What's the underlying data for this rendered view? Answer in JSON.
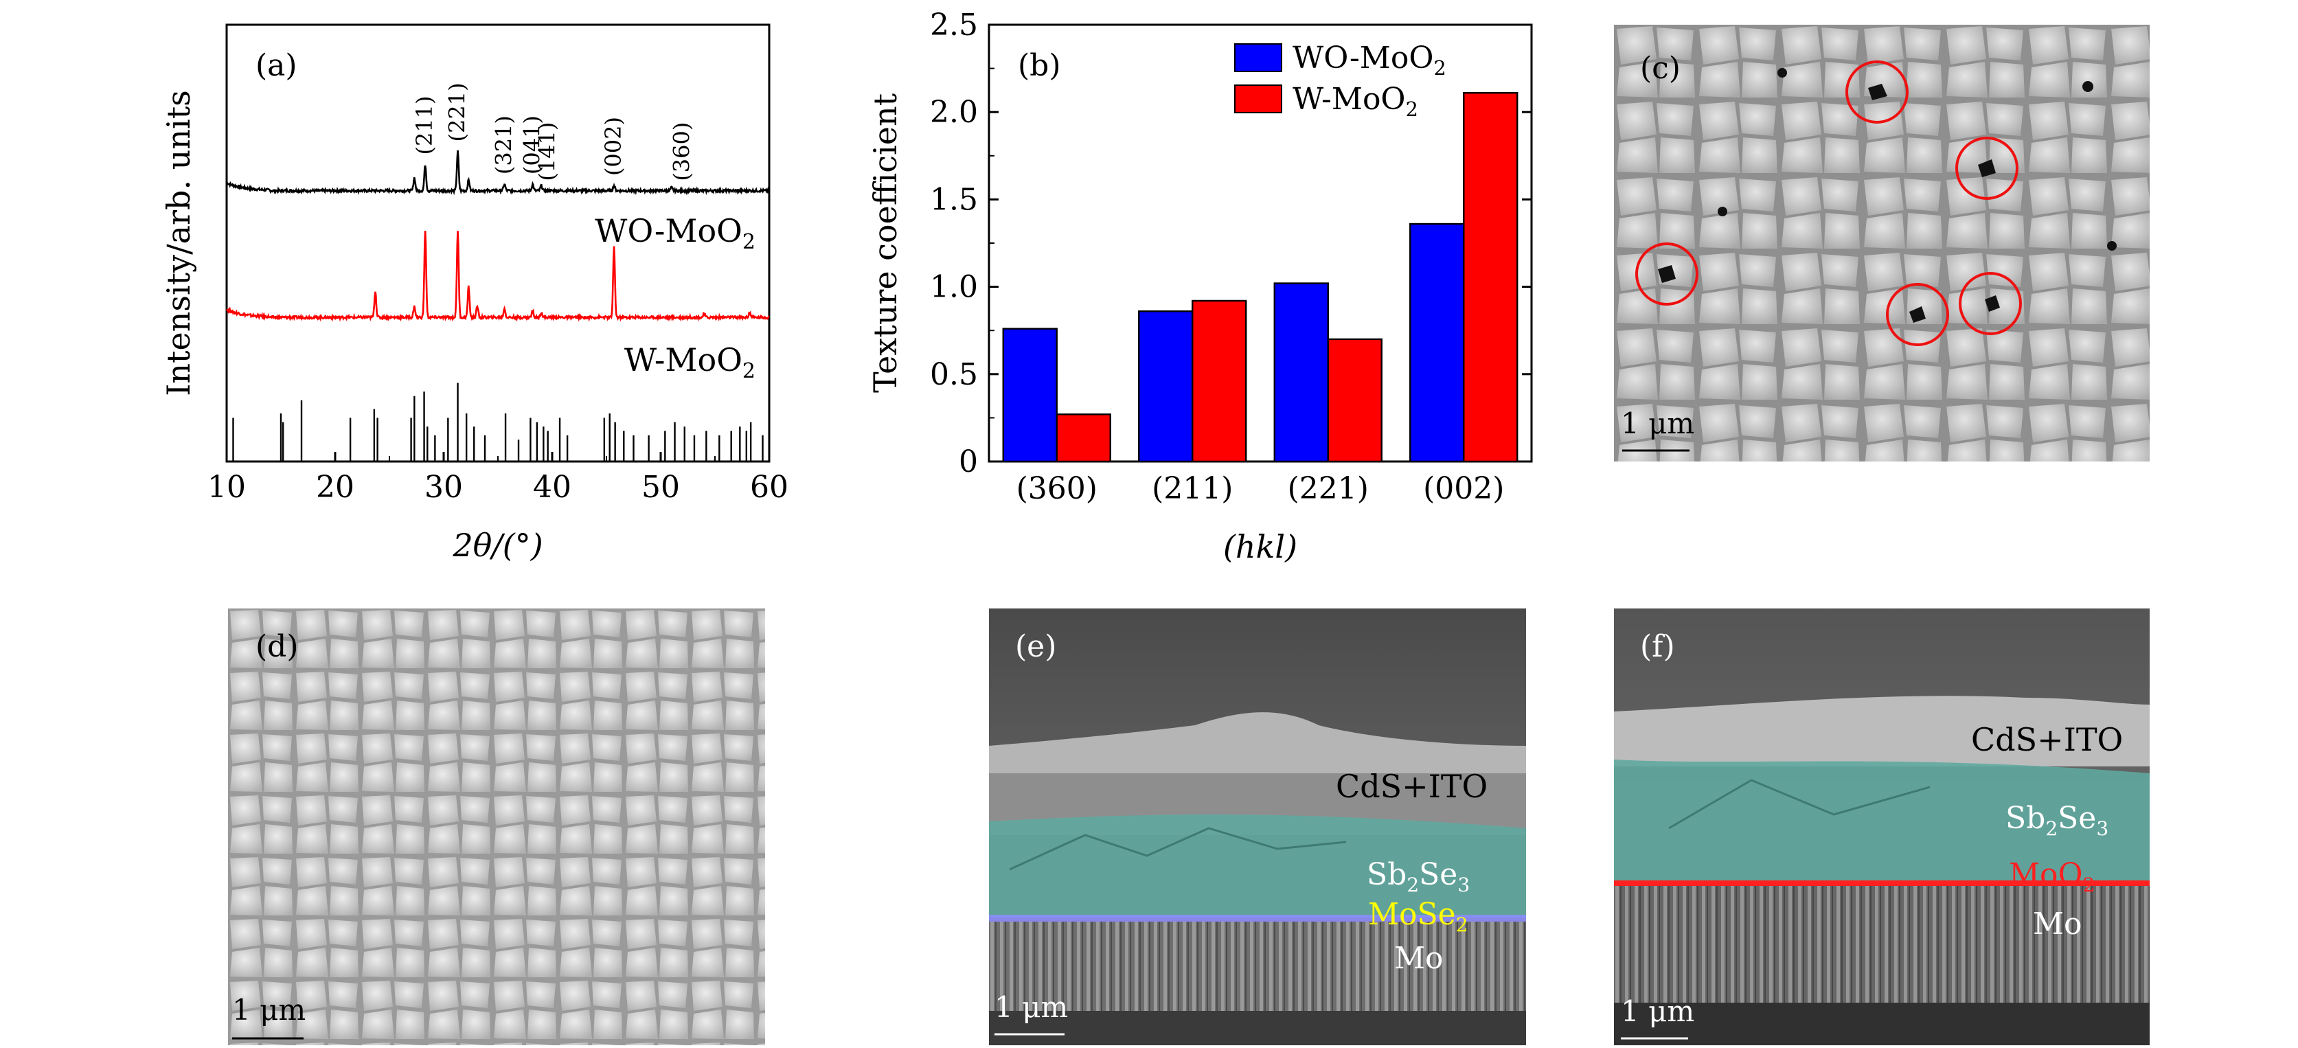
{
  "panels": {
    "a": "(a)",
    "b": "(b)",
    "c": "(c)",
    "d": "(d)",
    "e": "(e)",
    "f": "(f)"
  },
  "colors": {
    "wo_moo2": "#0000ff",
    "w_moo2": "#ff0000",
    "xrd_top": "#000000",
    "xrd_mid": "#ff0000",
    "sb2se3_overlay": "#5fa8a0",
    "mose2_line": "#8c8cff",
    "moo2_line": "#ff2020",
    "mose2_text": "#ffff00",
    "moo2_text": "#ff2020"
  },
  "chart_data": [
    {
      "type": "line",
      "panel": "(a)",
      "xlabel": "2θ/(°)",
      "ylabel": "Intensity/arb. units",
      "xlim": [
        10,
        60
      ],
      "xticks": [
        "10",
        "20",
        "30",
        "40",
        "50",
        "60"
      ],
      "series": [
        {
          "name": "WO-MoO2",
          "label_prefix": "WO-MoO",
          "label_sub": "2",
          "baseline": 0.62,
          "peaks": [
            [
              27.3,
              0.03
            ],
            [
              28.3,
              0.06
            ],
            [
              31.3,
              0.09
            ],
            [
              32.3,
              0.025
            ],
            [
              35.6,
              0.015
            ],
            [
              38.2,
              0.015
            ],
            [
              39.0,
              0.012
            ],
            [
              45.7,
              0.012
            ],
            [
              51.0,
              0.007
            ]
          ]
        },
        {
          "name": "W-MoO2",
          "label_prefix": "W-MoO",
          "label_sub": "2",
          "baseline": 0.33,
          "peaks": [
            [
              23.7,
              0.06
            ],
            [
              27.3,
              0.025
            ],
            [
              28.3,
              0.2
            ],
            [
              31.3,
              0.2
            ],
            [
              32.3,
              0.07
            ],
            [
              33.1,
              0.025
            ],
            [
              35.6,
              0.02
            ],
            [
              38.2,
              0.015
            ],
            [
              39.0,
              0.012
            ],
            [
              45.7,
              0.16
            ],
            [
              54.0,
              0.008
            ],
            [
              58.2,
              0.012
            ]
          ]
        }
      ],
      "reference_lines": [
        [
          10.6,
          0.1
        ],
        [
          15.0,
          0.11
        ],
        [
          15.2,
          0.09
        ],
        [
          16.9,
          0.14
        ],
        [
          21.4,
          0.1
        ],
        [
          23.6,
          0.12
        ],
        [
          23.9,
          0.1
        ],
        [
          27.0,
          0.1
        ],
        [
          27.3,
          0.15
        ],
        [
          28.2,
          0.16
        ],
        [
          28.5,
          0.08
        ],
        [
          29.2,
          0.06
        ],
        [
          30.4,
          0.1
        ],
        [
          31.3,
          0.18
        ],
        [
          32.1,
          0.11
        ],
        [
          32.8,
          0.08
        ],
        [
          33.8,
          0.06
        ],
        [
          35.7,
          0.11
        ],
        [
          36.9,
          0.05
        ],
        [
          38.0,
          0.1
        ],
        [
          38.6,
          0.09
        ],
        [
          39.2,
          0.08
        ],
        [
          39.6,
          0.07
        ],
        [
          40.7,
          0.1
        ],
        [
          41.4,
          0.06
        ],
        [
          44.8,
          0.1
        ],
        [
          45.3,
          0.11
        ],
        [
          45.8,
          0.09
        ],
        [
          46.6,
          0.07
        ],
        [
          47.5,
          0.06
        ],
        [
          48.9,
          0.06
        ],
        [
          50.4,
          0.07
        ],
        [
          51.3,
          0.09
        ],
        [
          52.2,
          0.08
        ],
        [
          53.1,
          0.06
        ],
        [
          54.2,
          0.07
        ],
        [
          55.4,
          0.06
        ],
        [
          56.5,
          0.07
        ],
        [
          57.3,
          0.08
        ],
        [
          57.9,
          0.07
        ],
        [
          58.3,
          0.09
        ],
        [
          59.4,
          0.06
        ]
      ],
      "annotations": [
        {
          "text": "(211)",
          "x": 28.3
        },
        {
          "text": "(221)",
          "x": 31.3
        },
        {
          "text": "(321)",
          "x": 35.6
        },
        {
          "text": "(041)",
          "x": 38.2
        },
        {
          "text": "(141)",
          "x": 39.6
        },
        {
          "text": "(002)",
          "x": 45.7
        },
        {
          "text": "(360)",
          "x": 52.0
        }
      ]
    },
    {
      "type": "bar",
      "panel": "(b)",
      "xlabel": "(hkl)",
      "ylabel": "Texture coefficient",
      "ylim": [
        0,
        2.5
      ],
      "yticks": [
        "0",
        "0.5",
        "1.0",
        "1.5",
        "2.0",
        "2.5"
      ],
      "categories": [
        "(360)",
        "(211)",
        "(221)",
        "(002)"
      ],
      "legend": "top-right",
      "series": [
        {
          "name": "WO-MoO2",
          "label_prefix": "WO-MoO",
          "label_sub": "2",
          "values": [
            0.76,
            0.86,
            1.02,
            1.36
          ]
        },
        {
          "name": "W-MoO2",
          "label_prefix": "W-MoO",
          "label_sub": "2",
          "values": [
            0.27,
            0.92,
            0.7,
            2.11
          ]
        }
      ]
    }
  ],
  "sem_images": {
    "scale_bar": "1 μm",
    "e_labels": {
      "top": "CdS+ITO",
      "absorber": "Sb",
      "absorber_sub1": "2",
      "absorber_mid": "Se",
      "absorber_sub2": "3",
      "interface": "MoSe",
      "interface_sub": "2",
      "bottom": "Mo"
    },
    "f_labels": {
      "top": "CdS+ITO",
      "absorber": "Sb",
      "absorber_sub1": "2",
      "absorber_mid": "Se",
      "absorber_sub2": "3",
      "interface": "MoO",
      "interface_sub": "2",
      "bottom": "Mo"
    }
  }
}
